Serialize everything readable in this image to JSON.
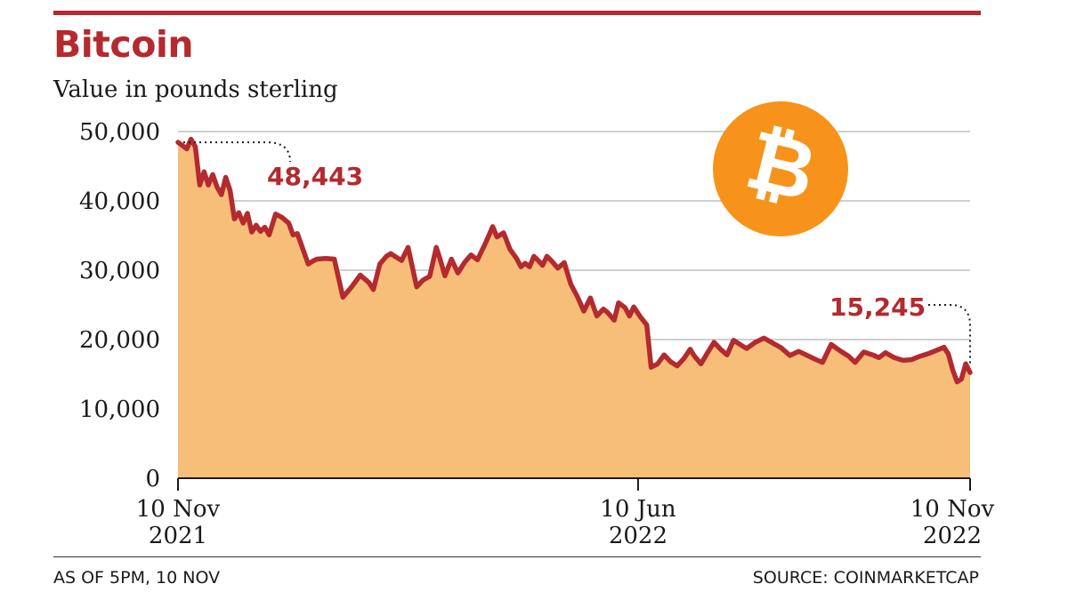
{
  "header": {
    "title": "Bitcoin",
    "subtitle": "Value in pounds sterling"
  },
  "footer": {
    "note": "AS OF 5PM, 10 NOV",
    "source": "SOURCE: COINMARKETCAP"
  },
  "colors": {
    "accent": "#b32a2f",
    "area_fill": "#f7be7a",
    "grid": "#b5b5b5",
    "logo": "#f7931a"
  },
  "logo": {
    "icon": "bitcoin-icon",
    "symbol": "₿"
  },
  "chart_data": {
    "type": "area",
    "title": "Bitcoin",
    "subtitle": "Value in pounds sterling",
    "xlabel": "",
    "ylabel": "",
    "xlim": [
      0,
      365
    ],
    "ylim": [
      0,
      50000
    ],
    "yticks": [
      0,
      10000,
      20000,
      30000,
      40000,
      50000
    ],
    "ytick_labels": [
      "0",
      "10,000",
      "20,000",
      "30,000",
      "40,000",
      "50,000"
    ],
    "xticks": [
      {
        "day": 0,
        "line1": "10 Nov",
        "line2": "2021"
      },
      {
        "day": 212,
        "line1": "10 Jun",
        "line2": "2022"
      },
      {
        "day": 365,
        "line1": "10 Nov",
        "line2": "2022"
      }
    ],
    "grid": true,
    "series": [
      {
        "name": "Bitcoin (GBP)",
        "points": [
          [
            0,
            48443
          ],
          [
            2,
            48000
          ],
          [
            4,
            47500
          ],
          [
            6,
            48900
          ],
          [
            8,
            47800
          ],
          [
            10,
            42300
          ],
          [
            12,
            44200
          ],
          [
            14,
            42300
          ],
          [
            16,
            43800
          ],
          [
            18,
            42000
          ],
          [
            20,
            40900
          ],
          [
            22,
            43400
          ],
          [
            24,
            41500
          ],
          [
            26,
            37400
          ],
          [
            28,
            38300
          ],
          [
            30,
            36800
          ],
          [
            32,
            38200
          ],
          [
            34,
            35500
          ],
          [
            36,
            36500
          ],
          [
            38,
            35600
          ],
          [
            40,
            36200
          ],
          [
            42,
            35100
          ],
          [
            45,
            38100
          ],
          [
            48,
            37600
          ],
          [
            51,
            36800
          ],
          [
            53,
            35100
          ],
          [
            55,
            35300
          ],
          [
            60,
            30900
          ],
          [
            62,
            31300
          ],
          [
            64,
            31600
          ],
          [
            68,
            31700
          ],
          [
            72,
            31600
          ],
          [
            76,
            26100
          ],
          [
            80,
            27600
          ],
          [
            84,
            29300
          ],
          [
            88,
            28200
          ],
          [
            90,
            27200
          ],
          [
            93,
            30900
          ],
          [
            96,
            32000
          ],
          [
            98,
            32400
          ],
          [
            100,
            32000
          ],
          [
            103,
            31400
          ],
          [
            106,
            33300
          ],
          [
            110,
            27600
          ],
          [
            113,
            28600
          ],
          [
            116,
            29100
          ],
          [
            119,
            33300
          ],
          [
            121,
            31400
          ],
          [
            123,
            29200
          ],
          [
            126,
            31600
          ],
          [
            129,
            29600
          ],
          [
            132,
            31100
          ],
          [
            135,
            32200
          ],
          [
            138,
            31500
          ],
          [
            142,
            34100
          ],
          [
            145,
            36300
          ],
          [
            147,
            34800
          ],
          [
            150,
            35400
          ],
          [
            153,
            33000
          ],
          [
            156,
            31700
          ],
          [
            158,
            30500
          ],
          [
            160,
            31000
          ],
          [
            162,
            30500
          ],
          [
            164,
            32000
          ],
          [
            166,
            31400
          ],
          [
            168,
            30700
          ],
          [
            170,
            32000
          ],
          [
            172,
            31400
          ],
          [
            175,
            30300
          ],
          [
            178,
            31100
          ],
          [
            181,
            28000
          ],
          [
            184,
            26200
          ],
          [
            187,
            24100
          ],
          [
            190,
            26000
          ],
          [
            193,
            23400
          ],
          [
            196,
            24400
          ],
          [
            198,
            23900
          ],
          [
            201,
            22800
          ],
          [
            203,
            25300
          ],
          [
            206,
            24600
          ],
          [
            208,
            23400
          ],
          [
            210,
            24700
          ],
          [
            213,
            23300
          ],
          [
            216,
            22100
          ],
          [
            218,
            16000
          ],
          [
            221,
            16500
          ],
          [
            224,
            17800
          ],
          [
            227,
            16800
          ],
          [
            230,
            16200
          ],
          [
            233,
            17200
          ],
          [
            236,
            18600
          ],
          [
            238,
            17600
          ],
          [
            241,
            16500
          ],
          [
            244,
            18100
          ],
          [
            247,
            19600
          ],
          [
            250,
            18600
          ],
          [
            253,
            17800
          ],
          [
            256,
            19900
          ],
          [
            259,
            19300
          ],
          [
            262,
            18700
          ],
          [
            266,
            19600
          ],
          [
            270,
            20200
          ],
          [
            274,
            19500
          ],
          [
            278,
            18800
          ],
          [
            282,
            17700
          ],
          [
            286,
            18300
          ],
          [
            290,
            17700
          ],
          [
            294,
            17100
          ],
          [
            297,
            16700
          ],
          [
            301,
            19300
          ],
          [
            305,
            18400
          ],
          [
            309,
            17600
          ],
          [
            312,
            16700
          ],
          [
            316,
            18200
          ],
          [
            320,
            17800
          ],
          [
            323,
            17400
          ],
          [
            326,
            18100
          ],
          [
            330,
            17400
          ],
          [
            334,
            17000
          ],
          [
            338,
            17100
          ],
          [
            342,
            17600
          ],
          [
            346,
            18000
          ],
          [
            350,
            18500
          ],
          [
            353,
            18900
          ],
          [
            355,
            17900
          ],
          [
            357,
            15600
          ],
          [
            359,
            13900
          ],
          [
            361,
            14300
          ],
          [
            363,
            16500
          ],
          [
            365,
            15245
          ]
        ]
      }
    ],
    "annotations": [
      {
        "day": 0,
        "value": 48443,
        "label": "48,443"
      },
      {
        "day": 365,
        "value": 15245,
        "label": "15,245"
      }
    ]
  }
}
